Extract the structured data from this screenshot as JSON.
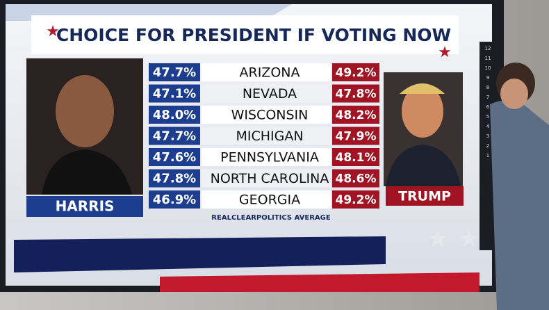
{
  "header": {
    "title": "CHOICE FOR PRESIDENT IF VOTING NOW"
  },
  "candidates": {
    "left": "HARRIS",
    "right": "TRUMP"
  },
  "table": {
    "rows": [
      [
        "47.7%",
        "ARIZONA",
        "49.2%"
      ],
      [
        "47.1%",
        "NEVADA",
        "47.8%"
      ],
      [
        "48.0%",
        "WISCONSIN",
        "48.2%"
      ],
      [
        "47.7%",
        "MICHIGAN",
        "47.9%"
      ],
      [
        "47.6%",
        "PENNSYLVANIA",
        "48.1%"
      ],
      [
        "47.8%",
        "NORTH CAROLINA",
        "48.6%"
      ],
      [
        "46.9%",
        "GEORGIA",
        "49.2%"
      ]
    ]
  },
  "source": "REALCLEARPOLITICS AVERAGE",
  "side_scale": [
    "12",
    "11",
    "10",
    "9",
    "8",
    "7",
    "6",
    "5",
    "4",
    "3",
    "2",
    "1"
  ]
}
